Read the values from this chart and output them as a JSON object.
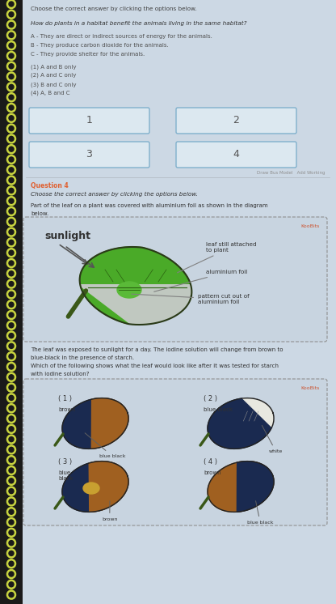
{
  "bg_color": "#c5d4e0",
  "page_bg": "#ccd8e4",
  "title_q1": "Choose the correct answer by clicking the options below.",
  "q1_question": "How do plants in a habitat benefit the animals living in the same habitat?",
  "q1_options": [
    "A - They are direct or indirect sources of energy for the animals.",
    "B - They produce carbon dioxide for the animals.",
    "C - They provide shelter for the animals."
  ],
  "q1_answers": [
    "(1) A and B only",
    "(2) A and C only",
    "(3) B and C only",
    "(4) A, B and C"
  ],
  "buttons": [
    "1",
    "2",
    "3",
    "4"
  ],
  "footer_text": "Draw Bus Model   Add Working",
  "q4_label": "Question 4",
  "q4_title": "Choose the correct answer by clicking the options below.",
  "q4_para1a": "Part of the leaf on a plant was covered with aluminium foil as shown in the diagram",
  "q4_para1b": "below.",
  "diagram_koobits": "KooBits",
  "diagram_sunlight": "sunlight",
  "diagram_leaf_label": "leaf still attached\nto plant",
  "diagram_foil_label": "aluminium foil",
  "diagram_pattern_label": "pattern cut out of\naluminium foil",
  "q4_para2a": "The leaf was exposed to sunlight for a day. The iodine solution will change from brown to",
  "q4_para2b": "blue-black in the presence of starch.",
  "q4_para3a": "Which of the following shows what the leaf would look like after it was tested for starch",
  "q4_para3b": "with iodine solution?",
  "answers_koobits": "KooBits",
  "green_dark": "#3a8a20",
  "green_leaf": "#4aaa28",
  "green_center": "#5aba38",
  "grey_foil": "#c0c8c0",
  "blue_black": "#1a2a50",
  "brown_color": "#a06020",
  "yellow_center": "#c8a030",
  "white_color": "#e8e8e0",
  "stem_color": "#3a5818"
}
